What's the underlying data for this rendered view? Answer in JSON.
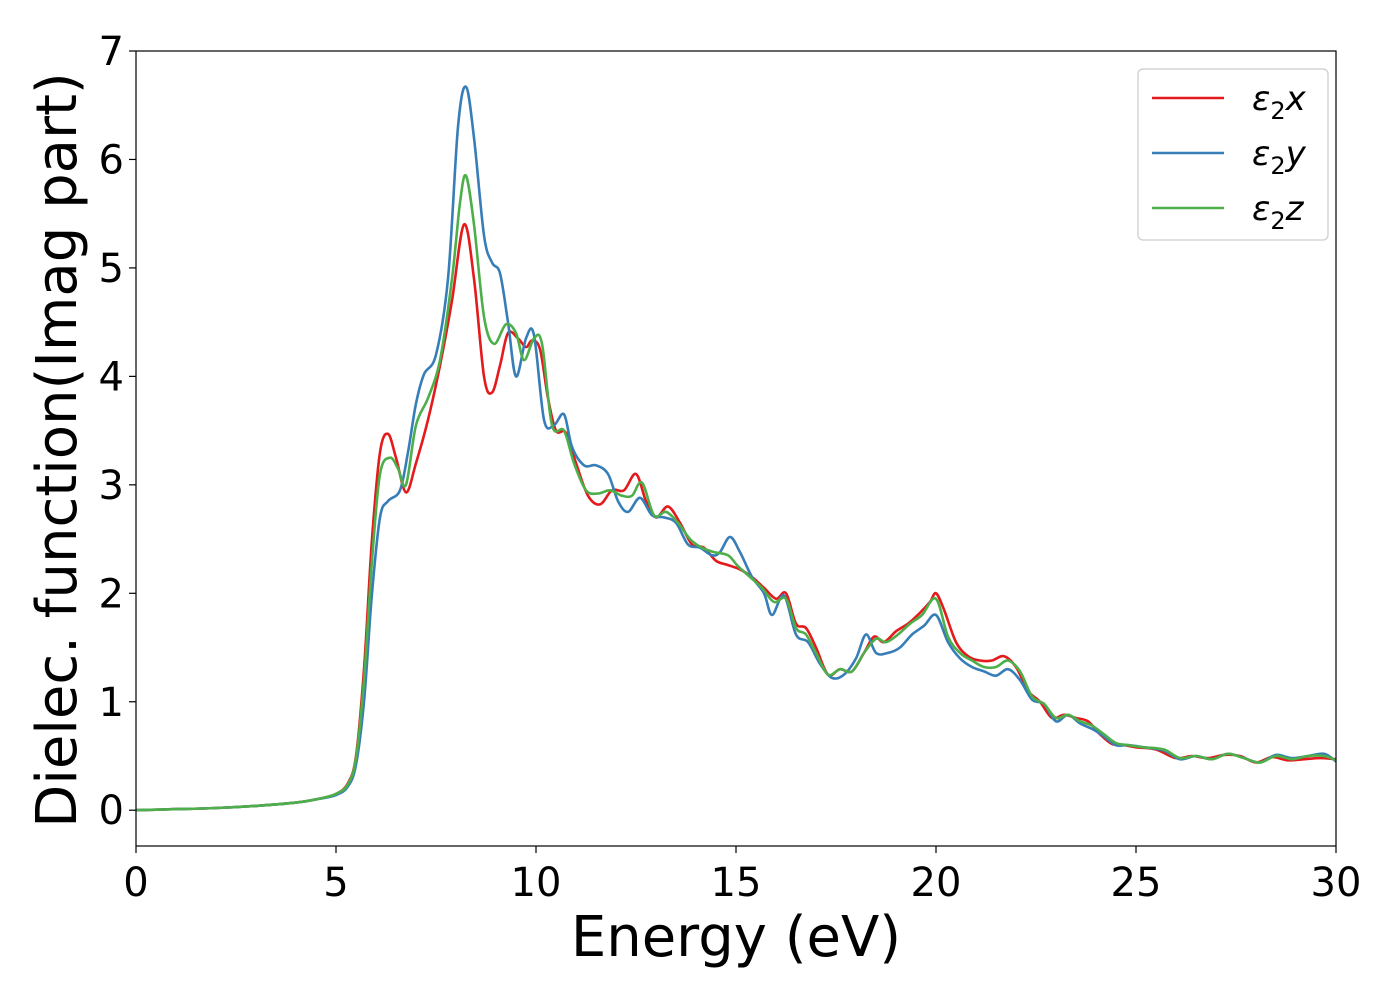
{
  "chart_data": {
    "type": "line",
    "xlabel": "Energy (eV)",
    "ylabel": "Dielec. function(Imag part)",
    "xlim": [
      0,
      30
    ],
    "ylim": [
      -0.33,
      7
    ],
    "xticks": [
      0,
      5,
      10,
      15,
      20,
      25,
      30
    ],
    "yticks": [
      0,
      1,
      2,
      3,
      4,
      5,
      6,
      7
    ],
    "grid": false,
    "legend": "top-right",
    "series": [
      {
        "name": "ε₂x",
        "legend_base": "ε",
        "legend_sub": "2",
        "legend_suffix": "x",
        "color": "#e41a1c",
        "x": [
          0,
          1,
          2,
          3,
          4,
          4.5,
          5,
          5.3,
          5.5,
          5.7,
          5.9,
          6.1,
          6.3,
          6.5,
          6.75,
          7,
          7.3,
          7.6,
          7.9,
          8.2,
          8.45,
          8.7,
          8.9,
          9.1,
          9.3,
          9.55,
          9.75,
          9.9,
          10.1,
          10.3,
          10.5,
          10.75,
          11,
          11.3,
          11.6,
          11.9,
          12.2,
          12.5,
          12.75,
          13,
          13.3,
          13.6,
          13.9,
          14.2,
          14.5,
          14.8,
          15.1,
          15.4,
          15.7,
          16,
          16.25,
          16.5,
          16.75,
          17,
          17.3,
          17.6,
          17.9,
          18.2,
          18.45,
          18.7,
          19,
          19.3,
          19.6,
          19.85,
          20,
          20.2,
          20.5,
          20.8,
          21.1,
          21.4,
          21.7,
          22,
          22.3,
          22.6,
          22.9,
          23.2,
          23.5,
          23.8,
          24.1,
          24.4,
          24.7,
          25,
          25.5,
          26,
          26.4,
          26.8,
          27.2,
          27.6,
          28,
          28.4,
          28.8,
          29.2,
          29.6,
          30
        ],
        "y": [
          0.0,
          0.01,
          0.02,
          0.04,
          0.07,
          0.1,
          0.15,
          0.25,
          0.5,
          1.3,
          2.5,
          3.3,
          3.47,
          3.25,
          2.93,
          3.2,
          3.6,
          4.1,
          4.7,
          5.4,
          4.9,
          4.0,
          3.85,
          4.1,
          4.4,
          4.35,
          4.27,
          4.33,
          4.25,
          3.8,
          3.5,
          3.48,
          3.2,
          2.9,
          2.82,
          2.95,
          2.95,
          3.1,
          2.85,
          2.7,
          2.8,
          2.65,
          2.45,
          2.42,
          2.3,
          2.26,
          2.22,
          2.15,
          2.05,
          1.95,
          2.0,
          1.72,
          1.68,
          1.5,
          1.25,
          1.3,
          1.28,
          1.45,
          1.6,
          1.55,
          1.65,
          1.72,
          1.82,
          1.92,
          2.0,
          1.85,
          1.55,
          1.42,
          1.38,
          1.38,
          1.42,
          1.32,
          1.1,
          1.0,
          0.85,
          0.88,
          0.85,
          0.82,
          0.7,
          0.61,
          0.6,
          0.58,
          0.56,
          0.48,
          0.5,
          0.48,
          0.51,
          0.5,
          0.44,
          0.49,
          0.46,
          0.47,
          0.48,
          0.47
        ]
      },
      {
        "name": "ε₂y",
        "legend_base": "ε",
        "legend_sub": "2",
        "legend_suffix": "y",
        "color": "#377eb8",
        "x": [
          0,
          1,
          2,
          3,
          4,
          4.5,
          5,
          5.3,
          5.5,
          5.7,
          5.9,
          6.1,
          6.3,
          6.6,
          6.8,
          7,
          7.2,
          7.5,
          7.8,
          8.05,
          8.25,
          8.45,
          8.7,
          8.9,
          9.1,
          9.3,
          9.5,
          9.75,
          9.95,
          10.2,
          10.45,
          10.7,
          10.9,
          11.2,
          11.5,
          11.8,
          12.05,
          12.3,
          12.6,
          12.9,
          13.2,
          13.5,
          13.8,
          14.1,
          14.4,
          14.6,
          14.85,
          15.1,
          15.4,
          15.7,
          15.9,
          16.2,
          16.5,
          16.8,
          17.1,
          17.4,
          17.7,
          18,
          18.25,
          18.5,
          18.8,
          19.1,
          19.4,
          19.7,
          20,
          20.3,
          20.6,
          20.9,
          21.2,
          21.5,
          21.8,
          22.1,
          22.4,
          22.7,
          23,
          23.3,
          23.6,
          23.9,
          24.2,
          24.5,
          24.8,
          25.2,
          25.7,
          26.1,
          26.5,
          26.9,
          27.3,
          27.7,
          28.1,
          28.5,
          28.9,
          29.3,
          29.7,
          30
        ],
        "y": [
          0.0,
          0.01,
          0.02,
          0.04,
          0.07,
          0.1,
          0.14,
          0.22,
          0.42,
          1.0,
          2.0,
          2.7,
          2.85,
          2.95,
          3.3,
          3.75,
          4.02,
          4.2,
          4.9,
          6.3,
          6.67,
          6.2,
          5.3,
          5.05,
          4.95,
          4.5,
          4.0,
          4.35,
          4.38,
          3.6,
          3.55,
          3.65,
          3.35,
          3.18,
          3.18,
          3.1,
          2.85,
          2.75,
          2.88,
          2.72,
          2.7,
          2.65,
          2.45,
          2.42,
          2.35,
          2.38,
          2.52,
          2.38,
          2.15,
          2.0,
          1.8,
          1.98,
          1.62,
          1.55,
          1.35,
          1.22,
          1.25,
          1.4,
          1.62,
          1.45,
          1.45,
          1.5,
          1.62,
          1.7,
          1.8,
          1.55,
          1.4,
          1.32,
          1.28,
          1.24,
          1.3,
          1.2,
          1.02,
          0.98,
          0.82,
          0.88,
          0.8,
          0.75,
          0.68,
          0.6,
          0.6,
          0.58,
          0.55,
          0.47,
          0.5,
          0.47,
          0.52,
          0.48,
          0.44,
          0.51,
          0.48,
          0.5,
          0.52,
          0.45
        ]
      },
      {
        "name": "ε₂z",
        "legend_base": "ε",
        "legend_sub": "2",
        "legend_suffix": "z",
        "color": "#4daf4a",
        "x": [
          0,
          1,
          2,
          3,
          4,
          4.5,
          5,
          5.3,
          5.5,
          5.7,
          5.9,
          6.1,
          6.35,
          6.55,
          6.75,
          7,
          7.3,
          7.6,
          7.9,
          8.1,
          8.25,
          8.45,
          8.7,
          8.95,
          9.25,
          9.5,
          9.7,
          9.95,
          10.15,
          10.4,
          10.7,
          10.95,
          11.25,
          11.55,
          11.85,
          12.15,
          12.4,
          12.65,
          12.95,
          13.25,
          13.55,
          13.85,
          14.15,
          14.45,
          14.8,
          15.05,
          15.35,
          15.65,
          15.95,
          16.25,
          16.5,
          16.75,
          17,
          17.3,
          17.6,
          17.9,
          18.2,
          18.5,
          18.75,
          19.05,
          19.35,
          19.65,
          20,
          20.3,
          20.6,
          20.9,
          21.2,
          21.5,
          21.8,
          22.1,
          22.4,
          22.7,
          23,
          23.3,
          23.6,
          23.9,
          24.2,
          24.5,
          24.8,
          25.2,
          25.7,
          26.1,
          26.5,
          26.9,
          27.3,
          27.7,
          28.1,
          28.5,
          28.9,
          29.3,
          29.7,
          30
        ],
        "y": [
          0.0,
          0.01,
          0.02,
          0.04,
          0.07,
          0.1,
          0.15,
          0.24,
          0.48,
          1.2,
          2.3,
          3.1,
          3.25,
          3.15,
          3.0,
          3.55,
          3.8,
          4.15,
          4.9,
          5.6,
          5.85,
          5.4,
          4.55,
          4.3,
          4.48,
          4.4,
          4.15,
          4.35,
          4.3,
          3.55,
          3.5,
          3.2,
          2.95,
          2.92,
          2.95,
          2.9,
          2.9,
          3.02,
          2.72,
          2.75,
          2.65,
          2.5,
          2.42,
          2.38,
          2.35,
          2.25,
          2.15,
          2.05,
          1.92,
          1.95,
          1.68,
          1.62,
          1.45,
          1.25,
          1.3,
          1.28,
          1.45,
          1.58,
          1.55,
          1.62,
          1.72,
          1.8,
          1.95,
          1.6,
          1.45,
          1.38,
          1.32,
          1.32,
          1.38,
          1.28,
          1.05,
          0.98,
          0.85,
          0.88,
          0.82,
          0.78,
          0.7,
          0.62,
          0.6,
          0.58,
          0.56,
          0.48,
          0.5,
          0.47,
          0.52,
          0.48,
          0.44,
          0.5,
          0.47,
          0.5,
          0.5,
          0.46
        ]
      }
    ]
  }
}
